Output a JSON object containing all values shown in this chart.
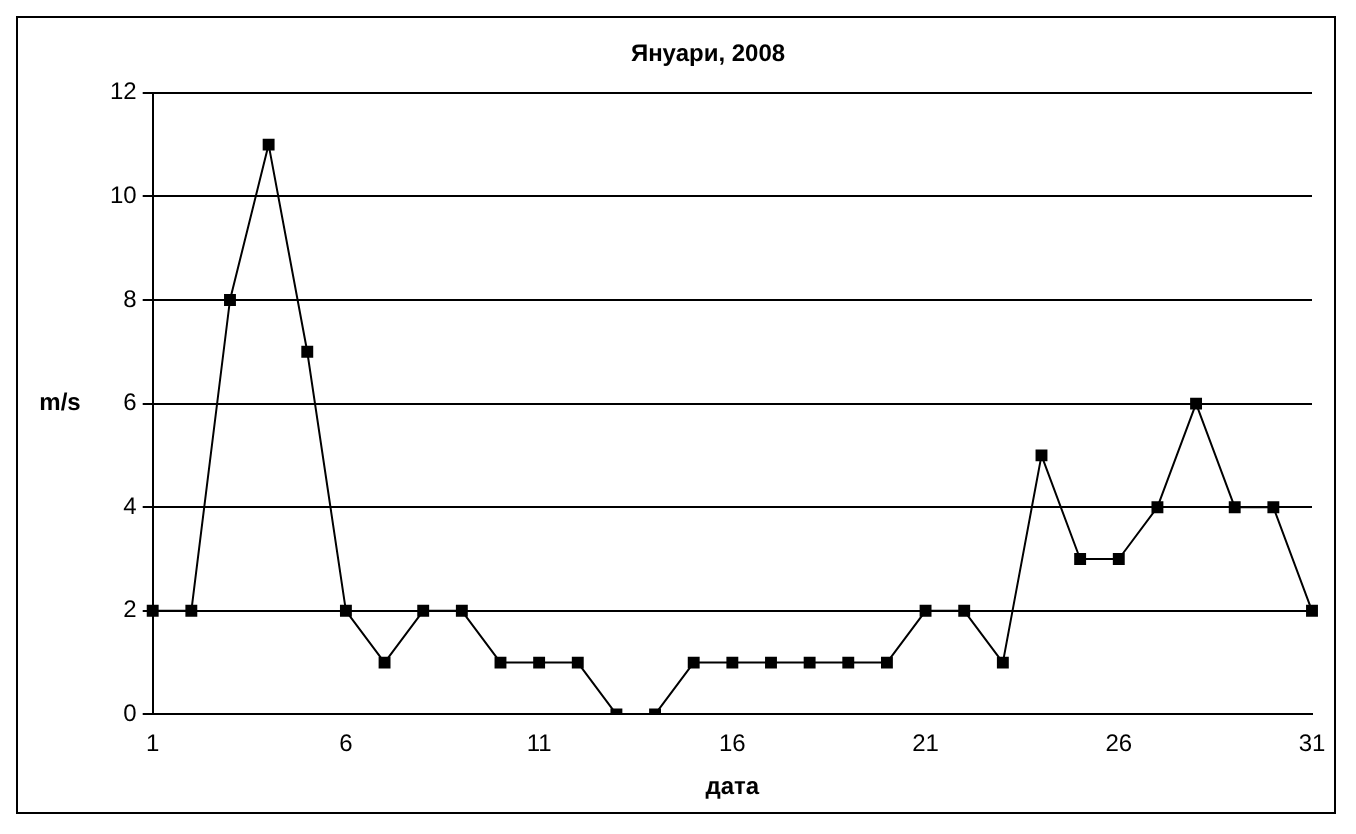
{
  "chart_data": {
    "type": "line",
    "title": "Януари, 2008",
    "xlabel": "дата",
    "ylabel": "m/s",
    "categories": [
      "1",
      null,
      null,
      null,
      null,
      "6",
      null,
      null,
      null,
      null,
      "11",
      null,
      null,
      null,
      null,
      "16",
      null,
      null,
      null,
      null,
      "21",
      null,
      null,
      null,
      null,
      "26",
      null,
      null,
      null,
      null,
      "31"
    ],
    "series": [
      {
        "color": "#000000",
        "values": [
          2,
          2,
          8,
          11,
          7,
          2,
          1,
          2,
          2,
          1,
          1,
          1,
          0,
          0,
          1,
          1,
          1,
          1,
          1,
          1,
          2,
          2,
          1,
          5,
          3,
          3,
          4,
          6,
          4,
          4,
          2
        ]
      }
    ],
    "ylim": [
      0,
      12
    ],
    "yticks": [
      0,
      2,
      4,
      6,
      8,
      10,
      12
    ],
    "grid": "y",
    "legend": false,
    "marker": "square",
    "line_style": "solid"
  }
}
